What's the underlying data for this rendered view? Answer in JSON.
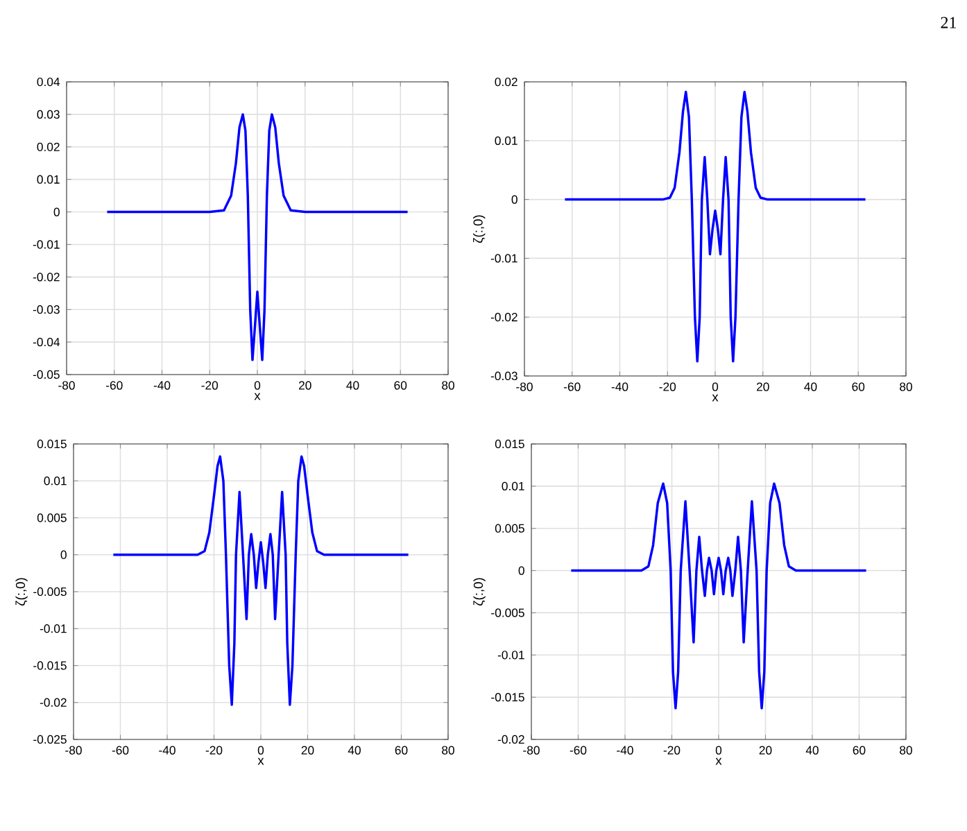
{
  "chart_data": [
    {
      "type": "line",
      "xlabel": "x",
      "annotations": [
        "21"
      ],
      "color": "#0000ff",
      "marker": "none",
      "line_style": "solid",
      "grid": true,
      "x": [
        -63,
        -20,
        -14,
        -11,
        -9,
        -7.5,
        -6.1,
        -5,
        -4,
        -3,
        -2.05,
        -1,
        0,
        1,
        2.05,
        3,
        4,
        5,
        6.1,
        7.5,
        9,
        11,
        14,
        20,
        63
      ],
      "values": [
        0,
        0,
        0.0005,
        0.005,
        0.015,
        0.026,
        0.03,
        0.025,
        0.005,
        -0.03,
        -0.0455,
        -0.035,
        -0.0245,
        -0.035,
        -0.0455,
        -0.03,
        0.005,
        0.025,
        0.03,
        0.026,
        0.015,
        0.005,
        0.0005,
        0,
        0
      ],
      "xlim": [
        -80,
        80
      ],
      "xticks": [
        -80,
        -60,
        -40,
        -20,
        0,
        20,
        40,
        60,
        80
      ],
      "ylim": [
        -0.05,
        0.04
      ],
      "yticks": [
        -0.05,
        -0.04,
        -0.03,
        -0.02,
        -0.01,
        0,
        0.01,
        0.02,
        0.03,
        0.04
      ]
    },
    {
      "type": "line",
      "xlabel": "x",
      "ylabel": "ζ(:,0)",
      "color": "#0000ff",
      "marker": "none",
      "line_style": "solid",
      "grid": true,
      "x": [
        -63,
        -22,
        -19,
        -17,
        -15,
        -13.5,
        -12.3,
        -11,
        -9.8,
        -8.5,
        -7.5,
        -6.5,
        -5.6,
        -4.4,
        -3.3,
        -2.2,
        -1.1,
        0,
        1.1,
        2.2,
        3.3,
        4.4,
        5.6,
        6.5,
        7.5,
        8.5,
        9.8,
        11,
        12.3,
        13.5,
        15,
        17,
        19,
        22,
        63
      ],
      "values": [
        0,
        0,
        0.0003,
        0.002,
        0.008,
        0.015,
        0.0183,
        0.014,
        0,
        -0.02,
        -0.0275,
        -0.02,
        0,
        0.0072,
        0,
        -0.0093,
        -0.005,
        -0.0019,
        -0.005,
        -0.0093,
        0,
        0.0072,
        0,
        -0.02,
        -0.0275,
        -0.02,
        0,
        0.014,
        0.0183,
        0.015,
        0.008,
        0.002,
        0.0003,
        0,
        0
      ],
      "xlim": [
        -80,
        80
      ],
      "xticks": [
        -80,
        -60,
        -40,
        -20,
        0,
        20,
        40,
        60,
        80
      ],
      "ylim": [
        -0.03,
        0.02
      ],
      "yticks": [
        -0.03,
        -0.02,
        -0.01,
        0,
        0.01,
        0.02
      ]
    },
    {
      "type": "line",
      "xlabel": "x",
      "ylabel": "ζ(:,0)",
      "color": "#0000ff",
      "marker": "none",
      "line_style": "solid",
      "grid": true,
      "x": [
        -63,
        -27,
        -24,
        -22,
        -20,
        -18.5,
        -17.4,
        -16,
        -14.9,
        -13.5,
        -12.4,
        -11.3,
        -10.6,
        -9.1,
        -7.6,
        -6.1,
        -5.1,
        -4.1,
        -3,
        -2,
        -1,
        0,
        1,
        2,
        3,
        4.1,
        5.1,
        6.1,
        7.6,
        9.1,
        10.6,
        11.3,
        12.4,
        13.5,
        14.9,
        16,
        17.4,
        18.5,
        20,
        22,
        24,
        27,
        63
      ],
      "values": [
        0,
        0,
        0.0005,
        0.003,
        0.008,
        0.012,
        0.0133,
        0.01,
        0,
        -0.015,
        -0.0203,
        -0.012,
        0,
        0.0085,
        0,
        -0.0087,
        0,
        0.0028,
        0,
        -0.0045,
        -0.001,
        0.0017,
        -0.001,
        -0.0045,
        0,
        0.0028,
        0,
        -0.0087,
        0,
        0.0085,
        0,
        -0.012,
        -0.0203,
        -0.015,
        0,
        0.01,
        0.0133,
        0.012,
        0.008,
        0.003,
        0.0005,
        0,
        0
      ],
      "xlim": [
        -80,
        80
      ],
      "xticks": [
        -80,
        -60,
        -40,
        -20,
        0,
        20,
        40,
        60,
        80
      ],
      "ylim": [
        -0.025,
        0.015
      ],
      "yticks": [
        -0.025,
        -0.02,
        -0.015,
        -0.01,
        -0.005,
        0,
        0.005,
        0.01,
        0.015
      ]
    },
    {
      "type": "line",
      "xlabel": "x",
      "ylabel": "ζ(:,0)",
      "color": "#0000ff",
      "marker": "none",
      "line_style": "solid",
      "grid": true,
      "x": [
        -63,
        -33,
        -30,
        -28,
        -26,
        -23.7,
        -22,
        -20.5,
        -19.5,
        -18.4,
        -17.3,
        -16.2,
        -14.2,
        -12.4,
        -10.7,
        -9.5,
        -8.3,
        -7.1,
        -5.9,
        -5,
        -4.1,
        -3,
        -2,
        -1,
        0,
        1,
        2,
        3,
        4.1,
        5,
        5.9,
        7.1,
        8.3,
        9.5,
        10.7,
        12.4,
        14.2,
        16.2,
        17.3,
        18.4,
        19.5,
        20.5,
        22,
        23.7,
        26,
        28,
        30,
        33,
        63
      ],
      "values": [
        0,
        0,
        0.0005,
        0.003,
        0.008,
        0.0103,
        0.008,
        0,
        -0.012,
        -0.0163,
        -0.012,
        0,
        0.0082,
        0,
        -0.0085,
        0,
        0.004,
        0,
        -0.003,
        0,
        0.0015,
        0,
        -0.0028,
        0,
        0.0015,
        0,
        -0.0028,
        0,
        0.0015,
        0,
        -0.003,
        0,
        0.004,
        0,
        -0.0085,
        0,
        0.0082,
        0,
        -0.012,
        -0.0163,
        -0.012,
        0,
        0.008,
        0.0103,
        0.008,
        0.003,
        0.0005,
        0,
        0
      ],
      "xlim": [
        -80,
        80
      ],
      "xticks": [
        -80,
        -60,
        -40,
        -20,
        0,
        20,
        40,
        60,
        80
      ],
      "ylim": [
        -0.02,
        0.015
      ],
      "yticks": [
        -0.02,
        -0.015,
        -0.01,
        -0.005,
        0,
        0.005,
        0.01,
        0.015
      ]
    }
  ]
}
